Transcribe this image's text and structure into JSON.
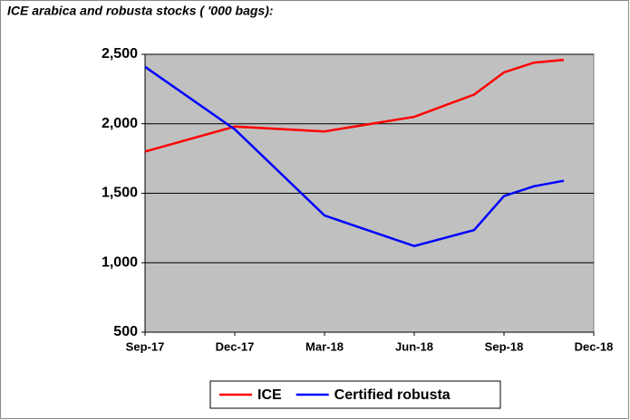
{
  "chart_data": {
    "type": "line",
    "title": "ICE arabica and robusta stocks ( '000 bags):",
    "x": [
      "Sep-17",
      "Dec-17",
      "Mar-18",
      "Jun-18",
      "Aug-18",
      "Sep-18",
      "Oct-18",
      "Nov-18"
    ],
    "series": [
      {
        "name": "ICE",
        "color": "#ff0000",
        "values": [
          1800,
          1980,
          1945,
          2050,
          2210,
          2370,
          2440,
          2460
        ]
      },
      {
        "name": "Certified robusta",
        "color": "#0000ff",
        "values": [
          2410,
          1960,
          1340,
          1120,
          1235,
          1480,
          1550,
          1590
        ]
      }
    ],
    "xlim": [
      "Sep-17",
      "Dec-18"
    ],
    "xticks": [
      "Sep-17",
      "Dec-17",
      "Mar-18",
      "Jun-18",
      "Sep-18",
      "Dec-18"
    ],
    "ylim": [
      500,
      2500
    ],
    "yticks": [
      500,
      {
        "value": 1000,
        "label": "1,000"
      },
      {
        "value": 1500,
        "label": "1,500"
      },
      {
        "value": 2000,
        "label": "2,000"
      },
      {
        "value": 2500,
        "label": "2,500"
      }
    ],
    "grid": true,
    "legend": "bottom"
  }
}
